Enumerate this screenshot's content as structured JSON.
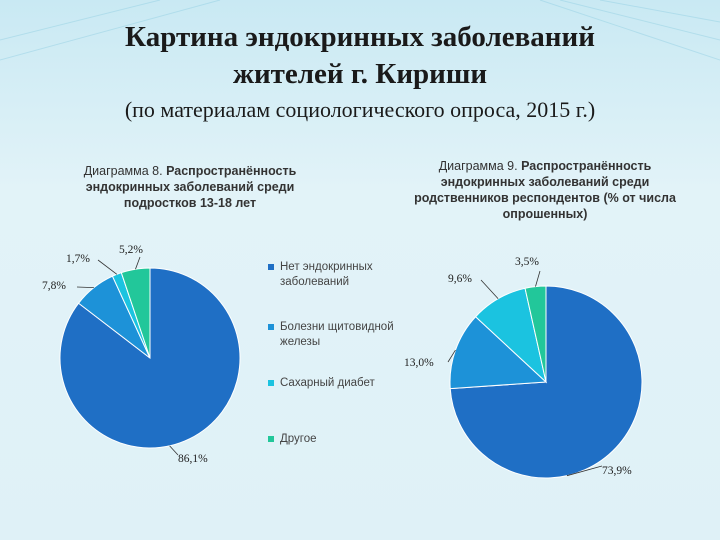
{
  "slide": {
    "title_line1": "Картина эндокринных заболеваний",
    "title_line2": "жителей г. Кириши",
    "subtitle": "(по материалам социологического опроса, 2015 г.)"
  },
  "colors": {
    "none": "#1f6fc5",
    "thyroid": "#1d92d8",
    "diabetes": "#1bc3e0",
    "other": "#22c79a"
  },
  "legend": [
    {
      "label": "Нет эндокринных заболеваний",
      "color": "#1f6fc5"
    },
    {
      "label": "Болезни щитовидной железы",
      "color": "#1d92d8"
    },
    {
      "label": "Сахарный диабет",
      "color": "#1bc3e0"
    },
    {
      "label": "Другое",
      "color": "#22c79a"
    }
  ],
  "chart_data": [
    {
      "type": "pie",
      "caption_number": "Диаграмма 8.",
      "caption_text": "Распространённость эндокринных заболеваний среди подростков 13-18 лет",
      "categories": [
        "Нет эндокринных заболеваний",
        "Болезни щитовидной железы",
        "Сахарный диабет",
        "Другое"
      ],
      "values": [
        86.1,
        7.8,
        1.7,
        5.2
      ],
      "labels": [
        "86,1%",
        "7,8%",
        "1,7%",
        "5,2%"
      ]
    },
    {
      "type": "pie",
      "caption_number": "Диаграмма 9.",
      "caption_text": "Распространённость эндокринных заболеваний среди родственников респондентов (% от числа опрошенных)",
      "categories": [
        "Нет эндокринных заболеваний",
        "Болезни щитовидной железы",
        "Сахарный диабет",
        "Другое"
      ],
      "values": [
        73.9,
        13.0,
        9.6,
        3.5
      ],
      "labels": [
        "73,9%",
        "13,0%",
        "9,6%",
        "3,5%"
      ]
    }
  ]
}
